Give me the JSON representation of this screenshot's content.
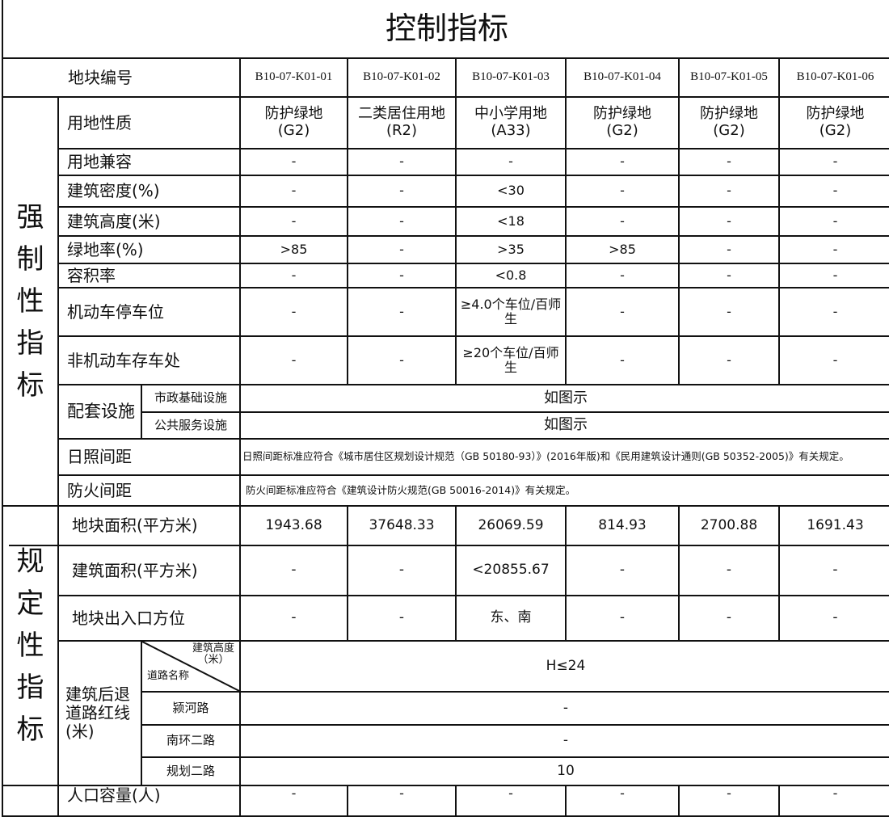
{
  "title": "控制指标",
  "header": {
    "label": "地块编号",
    "parcels": [
      "B10-07-K01-01",
      "B10-07-K01-02",
      "B10-07-K01-03",
      "B10-07-K01-04",
      "B10-07-K01-05",
      "B10-07-K01-06"
    ]
  },
  "mandatory": {
    "group_label": "强制性指标",
    "rows": [
      {
        "label": "用地性质",
        "values": [
          "防护绿地\n(G2)",
          "二类居住用地\n(R2)",
          "中小学用地\n(A33)",
          "防护绿地\n(G2)",
          "防护绿地\n(G2)",
          "防护绿地\n(G2)"
        ]
      },
      {
        "label": "用地兼容",
        "values": [
          "-",
          "-",
          "-",
          "-",
          "-",
          "-"
        ]
      },
      {
        "label": "建筑密度(%)",
        "values": [
          "-",
          "-",
          "<30",
          "-",
          "-",
          "-"
        ]
      },
      {
        "label": "建筑高度(米)",
        "values": [
          "-",
          "-",
          "<18",
          "-",
          "-",
          "-"
        ]
      },
      {
        "label": "绿地率(%)",
        "values": [
          ">85",
          "-",
          ">35",
          ">85",
          "-",
          "-"
        ]
      },
      {
        "label": "容积率",
        "values": [
          "-",
          "-",
          "<0.8",
          "-",
          "-",
          "-"
        ]
      },
      {
        "label": "机动车停车位",
        "values": [
          "-",
          "-",
          "≥4.0个车位/百师生",
          "-",
          "-",
          "-"
        ]
      },
      {
        "label": "非机动车存车处",
        "values": [
          "-",
          "-",
          "≥20个车位/百师生",
          "-",
          "-",
          "-"
        ]
      }
    ],
    "facilities": {
      "label": "配套设施",
      "items": [
        {
          "label": "市政基础设施",
          "value": "如图示"
        },
        {
          "label": "公共服务设施",
          "value": "如图示"
        }
      ]
    },
    "sunlight": {
      "label": "日照间距",
      "value": "日照间距标准应符合《城市居住区规划设计规范（GB 50180-93）》(2016年版)和《民用建筑设计通则(GB 50352-2005)》有关规定。"
    },
    "fire": {
      "label": "防火间距",
      "value": "防火间距标准应符合《建筑设计防火规范(GB 50016-2014)》有关规定。"
    }
  },
  "regulatory": {
    "group_label": "规定性指标",
    "rows": [
      {
        "label": "地块面积(平方米)",
        "values": [
          "1943.68",
          "37648.33",
          "26069.59",
          "814.93",
          "2700.88",
          "1691.43"
        ]
      },
      {
        "label": "建筑面积(平方米)",
        "values": [
          "-",
          "-",
          "<20855.67",
          "-",
          "-",
          "-"
        ]
      },
      {
        "label": "地块出入口方位",
        "values": [
          "-",
          "-",
          "东、南",
          "-",
          "-",
          "-"
        ]
      }
    ],
    "setback": {
      "label": "建筑后退\n道路红线\n(米)",
      "header_top": "建筑高度\n（米）",
      "header_bottom": "道路名称",
      "height_value": "H≤24",
      "roads": [
        {
          "name": "颍河路",
          "value": "-"
        },
        {
          "name": "南环二路",
          "value": "-"
        },
        {
          "name": "规划二路",
          "value": "10"
        }
      ]
    }
  },
  "population": {
    "label": "人口容量(人)",
    "values": [
      "-",
      "-",
      "-",
      "-",
      "-",
      "-"
    ]
  }
}
